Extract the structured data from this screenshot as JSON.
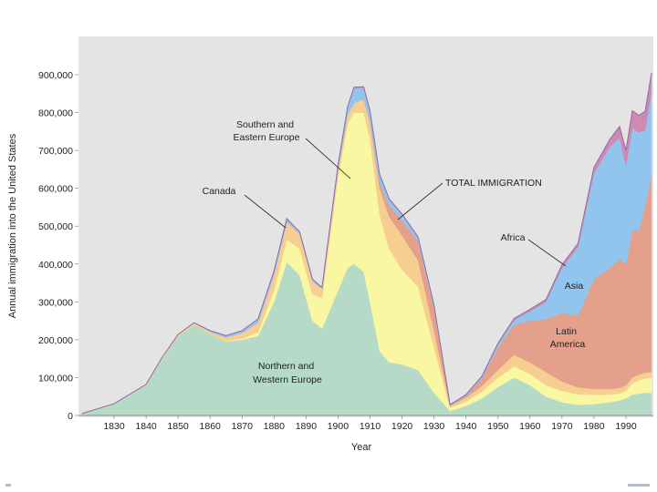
{
  "chart_data": {
    "type": "area",
    "stacked": true,
    "title": "",
    "xlabel": "Year",
    "ylabel": "Annual immigration into the United States",
    "xlim": [
      1820,
      1998
    ],
    "ylim": [
      0,
      1000000
    ],
    "x_ticks": [
      1830,
      1840,
      1850,
      1860,
      1870,
      1880,
      1890,
      1900,
      1910,
      1920,
      1930,
      1940,
      1950,
      1960,
      1970,
      1980,
      1990
    ],
    "y_ticks": [
      0,
      100000,
      200000,
      300000,
      400000,
      500000,
      600000,
      700000,
      800000,
      900000
    ],
    "y_tick_labels": [
      "0",
      "100,000",
      "200,000",
      "300,000",
      "400,000",
      "500,000",
      "600,000",
      "700,000",
      "800,000",
      "900,000"
    ],
    "x": [
      1820,
      1830,
      1840,
      1845,
      1850,
      1855,
      1860,
      1865,
      1870,
      1875,
      1880,
      1884,
      1888,
      1892,
      1895,
      1900,
      1903,
      1905,
      1908,
      1910,
      1913,
      1916,
      1920,
      1925,
      1930,
      1935,
      1940,
      1945,
      1950,
      1955,
      1960,
      1965,
      1970,
      1975,
      1980,
      1985,
      1988,
      1990,
      1992,
      1994,
      1996,
      1998
    ],
    "series": [
      {
        "name": "Northern and Western Europe",
        "color": "#b6dac8",
        "values": [
          5000,
          30000,
          80000,
          150000,
          210000,
          240000,
          215000,
          195000,
          200000,
          210000,
          300000,
          405000,
          370000,
          250000,
          230000,
          330000,
          390000,
          400000,
          380000,
          300000,
          170000,
          140000,
          135000,
          120000,
          60000,
          12000,
          25000,
          45000,
          75000,
          100000,
          80000,
          50000,
          35000,
          28000,
          30000,
          35000,
          40000,
          45000,
          55000,
          58000,
          60000,
          60000
        ]
      },
      {
        "name": "Southern and Eastern Europe",
        "color": "#f9f7a1",
        "values": [
          0,
          0,
          0,
          0,
          0,
          0,
          0,
          1000,
          3000,
          10000,
          30000,
          60000,
          70000,
          70000,
          80000,
          300000,
          380000,
          400000,
          420000,
          430000,
          360000,
          300000,
          250000,
          220000,
          120000,
          8000,
          12000,
          18000,
          25000,
          30000,
          30000,
          30000,
          30000,
          28000,
          25000,
          20000,
          18000,
          20000,
          30000,
          35000,
          38000,
          40000
        ]
      },
      {
        "name": "Canada",
        "color": "#f6cf90",
        "values": [
          0,
          1000,
          2000,
          3000,
          4000,
          5000,
          6000,
          10000,
          15000,
          25000,
          40000,
          45000,
          40000,
          35000,
          25000,
          20000,
          25000,
          25000,
          35000,
          45000,
          70000,
          85000,
          90000,
          70000,
          45000,
          5000,
          10000,
          15000,
          20000,
          30000,
          30000,
          35000,
          25000,
          18000,
          15000,
          15000,
          15000,
          15000,
          15000,
          15000,
          15000,
          15000
        ]
      },
      {
        "name": "Latin America",
        "color": "#e4a08a",
        "values": [
          0,
          0,
          0,
          0,
          0,
          0,
          0,
          0,
          0,
          0,
          0,
          0,
          0,
          0,
          0,
          0,
          0,
          0,
          1000,
          2000,
          15000,
          30000,
          40000,
          50000,
          60000,
          2000,
          5000,
          20000,
          60000,
          80000,
          110000,
          140000,
          180000,
          190000,
          290000,
          320000,
          340000,
          320000,
          390000,
          380000,
          440000,
          520000
        ]
      },
      {
        "name": "Asia",
        "color": "#92c5ee",
        "values": [
          0,
          0,
          0,
          0,
          0,
          0,
          3000,
          5000,
          6000,
          10000,
          12000,
          10000,
          5000,
          5000,
          3000,
          10000,
          20000,
          40000,
          30000,
          25000,
          20000,
          15000,
          15000,
          10000,
          5000,
          1000,
          2000,
          4000,
          8000,
          12000,
          25000,
          45000,
          120000,
          180000,
          280000,
          320000,
          320000,
          260000,
          270000,
          260000,
          200000,
          220000
        ]
      },
      {
        "name": "Africa",
        "color": "#d089b3",
        "values": [
          0,
          0,
          0,
          0,
          0,
          0,
          0,
          0,
          0,
          0,
          0,
          0,
          0,
          0,
          0,
          0,
          1000,
          2000,
          2000,
          2000,
          2000,
          2000,
          2000,
          2000,
          2000,
          500,
          1000,
          2000,
          3000,
          4000,
          5000,
          6000,
          8000,
          10000,
          15000,
          20000,
          30000,
          40000,
          45000,
          45000,
          50000,
          50000
        ]
      }
    ],
    "annotations": [
      {
        "text": "Southern and Eastern Europe",
        "lines": [
          "Southern and",
          "Eastern Europe"
        ]
      },
      {
        "text": "Canada",
        "lines": [
          "Canada"
        ]
      },
      {
        "text": "TOTAL IMMIGRATION",
        "lines": [
          "TOTAL IMMIGRATION"
        ]
      },
      {
        "text": "Africa",
        "lines": [
          "Africa"
        ]
      },
      {
        "text": "Asia",
        "lines": [
          "Asia"
        ]
      },
      {
        "text": "Latin America",
        "lines": [
          "Latin",
          "America"
        ]
      },
      {
        "text": "Northern and Western Europe",
        "lines": [
          "Northern and",
          "Western Europe"
        ]
      }
    ],
    "background_color": "#e5e4e5"
  }
}
